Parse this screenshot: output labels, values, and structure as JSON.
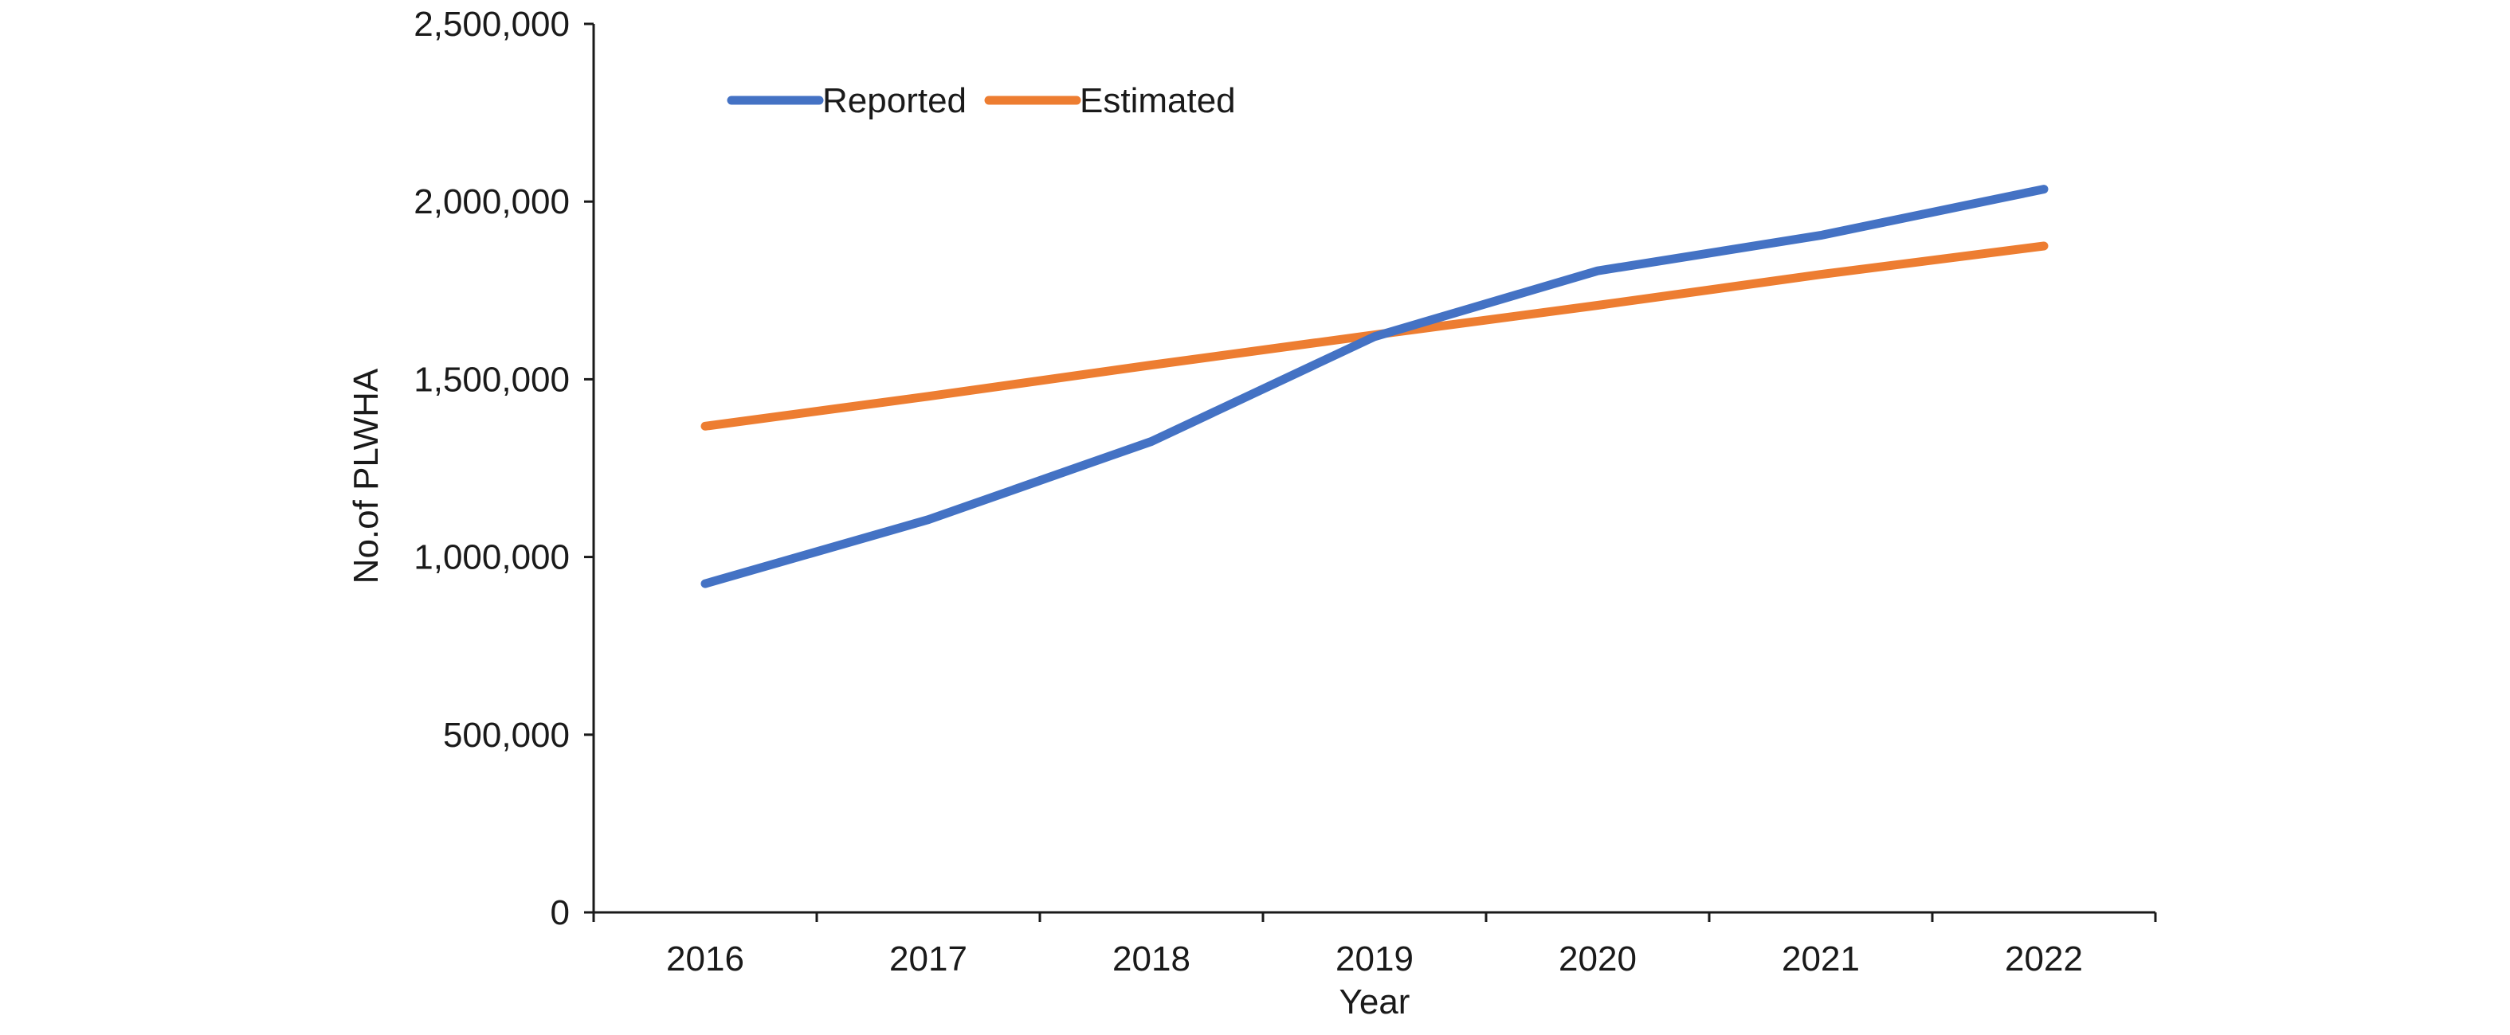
{
  "chart_data": {
    "type": "line",
    "title": "",
    "xlabel": "Year",
    "ylabel": "No.of PLWHA",
    "categories": [
      "2016",
      "2017",
      "2018",
      "2019",
      "2020",
      "2021",
      "2022"
    ],
    "ylim": [
      0,
      2500000
    ],
    "yticks": [
      0,
      500000,
      1000000,
      1500000,
      2000000,
      2500000
    ],
    "ytick_labels": [
      "0",
      "500,000",
      "1,000,000",
      "1,500,000",
      "2,000,000",
      "2,500,000"
    ],
    "grid": false,
    "legend_position": "top-left",
    "series": [
      {
        "name": "Reported",
        "color": "#4472C4",
        "values": [
          925000,
          1105000,
          1325000,
          1620000,
          1805000,
          1905000,
          2035000
        ]
      },
      {
        "name": "Estimated",
        "color": "#ED7D31",
        "values": [
          1368000,
          1452000,
          1540000,
          1625000,
          1708000,
          1795000,
          1875000
        ]
      }
    ]
  }
}
